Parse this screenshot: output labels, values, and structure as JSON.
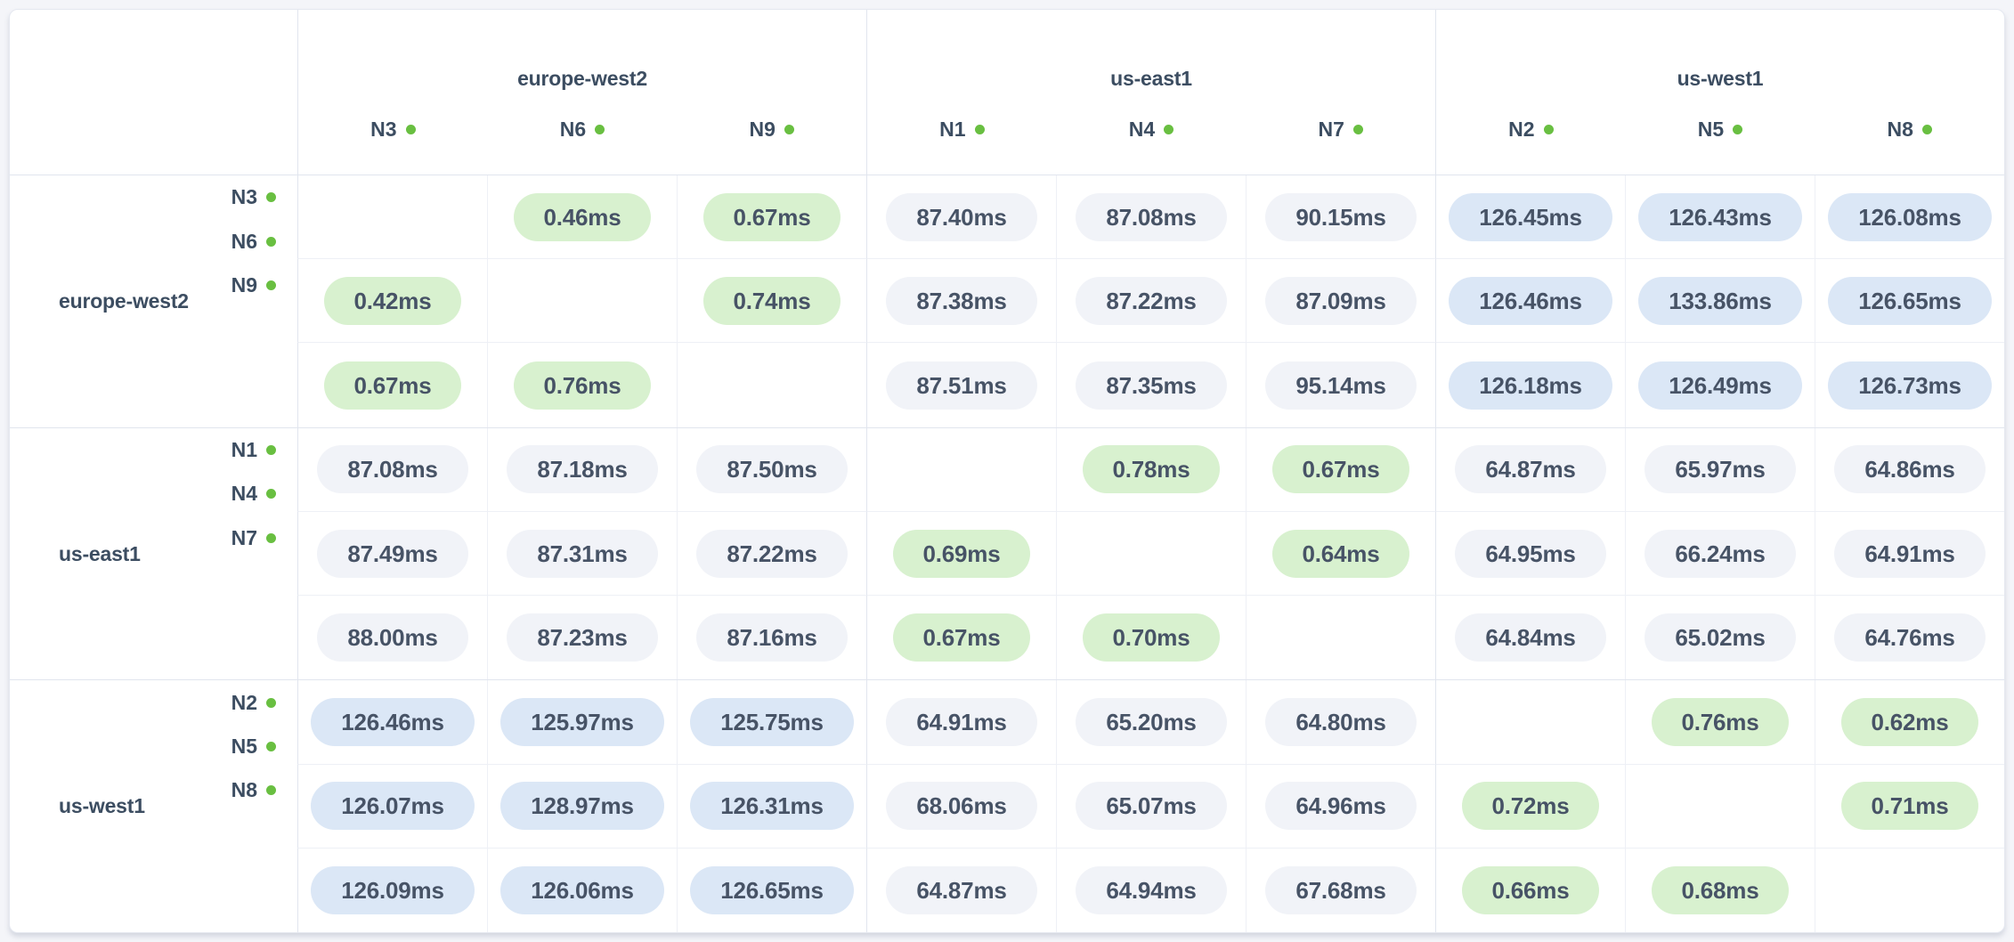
{
  "colors": {
    "page_background": "#f4f5f9",
    "card_background": "#ffffff",
    "status_dot": "#69bf41",
    "pill_green": "#d8f1cf",
    "pill_gray": "#f1f3f8",
    "pill_blue": "#dbe7f6",
    "label_text": "#3c4d61",
    "pill_text": "#475366"
  },
  "unit": "ms",
  "column_groups": [
    {
      "region": "europe-west2",
      "nodes": [
        "N3",
        "N6",
        "N9"
      ]
    },
    {
      "region": "us-east1",
      "nodes": [
        "N1",
        "N4",
        "N7"
      ]
    },
    {
      "region": "us-west1",
      "nodes": [
        "N2",
        "N5",
        "N8"
      ]
    }
  ],
  "row_groups": [
    {
      "region": "europe-west2",
      "rows": [
        {
          "node": "N3",
          "values": [
            "",
            "0.46ms",
            "0.67ms",
            "87.40ms",
            "87.08ms",
            "90.15ms",
            "126.45ms",
            "126.43ms",
            "126.08ms"
          ]
        },
        {
          "node": "N6",
          "values": [
            "0.42ms",
            "",
            "0.74ms",
            "87.38ms",
            "87.22ms",
            "87.09ms",
            "126.46ms",
            "133.86ms",
            "126.65ms"
          ]
        },
        {
          "node": "N9",
          "values": [
            "0.67ms",
            "0.76ms",
            "",
            "87.51ms",
            "87.35ms",
            "95.14ms",
            "126.18ms",
            "126.49ms",
            "126.73ms"
          ]
        }
      ]
    },
    {
      "region": "us-east1",
      "rows": [
        {
          "node": "N1",
          "values": [
            "87.08ms",
            "87.18ms",
            "87.50ms",
            "",
            "0.78ms",
            "0.67ms",
            "64.87ms",
            "65.97ms",
            "64.86ms"
          ]
        },
        {
          "node": "N4",
          "values": [
            "87.49ms",
            "87.31ms",
            "87.22ms",
            "0.69ms",
            "",
            "0.64ms",
            "64.95ms",
            "66.24ms",
            "64.91ms"
          ]
        },
        {
          "node": "N7",
          "values": [
            "88.00ms",
            "87.23ms",
            "87.16ms",
            "0.67ms",
            "0.70ms",
            "",
            "64.84ms",
            "65.02ms",
            "64.76ms"
          ]
        }
      ]
    },
    {
      "region": "us-west1",
      "rows": [
        {
          "node": "N2",
          "values": [
            "126.46ms",
            "125.97ms",
            "125.75ms",
            "64.91ms",
            "65.20ms",
            "64.80ms",
            "",
            "0.76ms",
            "0.62ms"
          ]
        },
        {
          "node": "N5",
          "values": [
            "126.07ms",
            "128.97ms",
            "126.31ms",
            "68.06ms",
            "65.07ms",
            "64.96ms",
            "0.72ms",
            "",
            "0.71ms"
          ]
        },
        {
          "node": "N8",
          "values": [
            "126.09ms",
            "126.06ms",
            "126.65ms",
            "64.87ms",
            "64.94ms",
            "67.68ms",
            "0.66ms",
            "0.68ms",
            ""
          ]
        }
      ]
    }
  ]
}
